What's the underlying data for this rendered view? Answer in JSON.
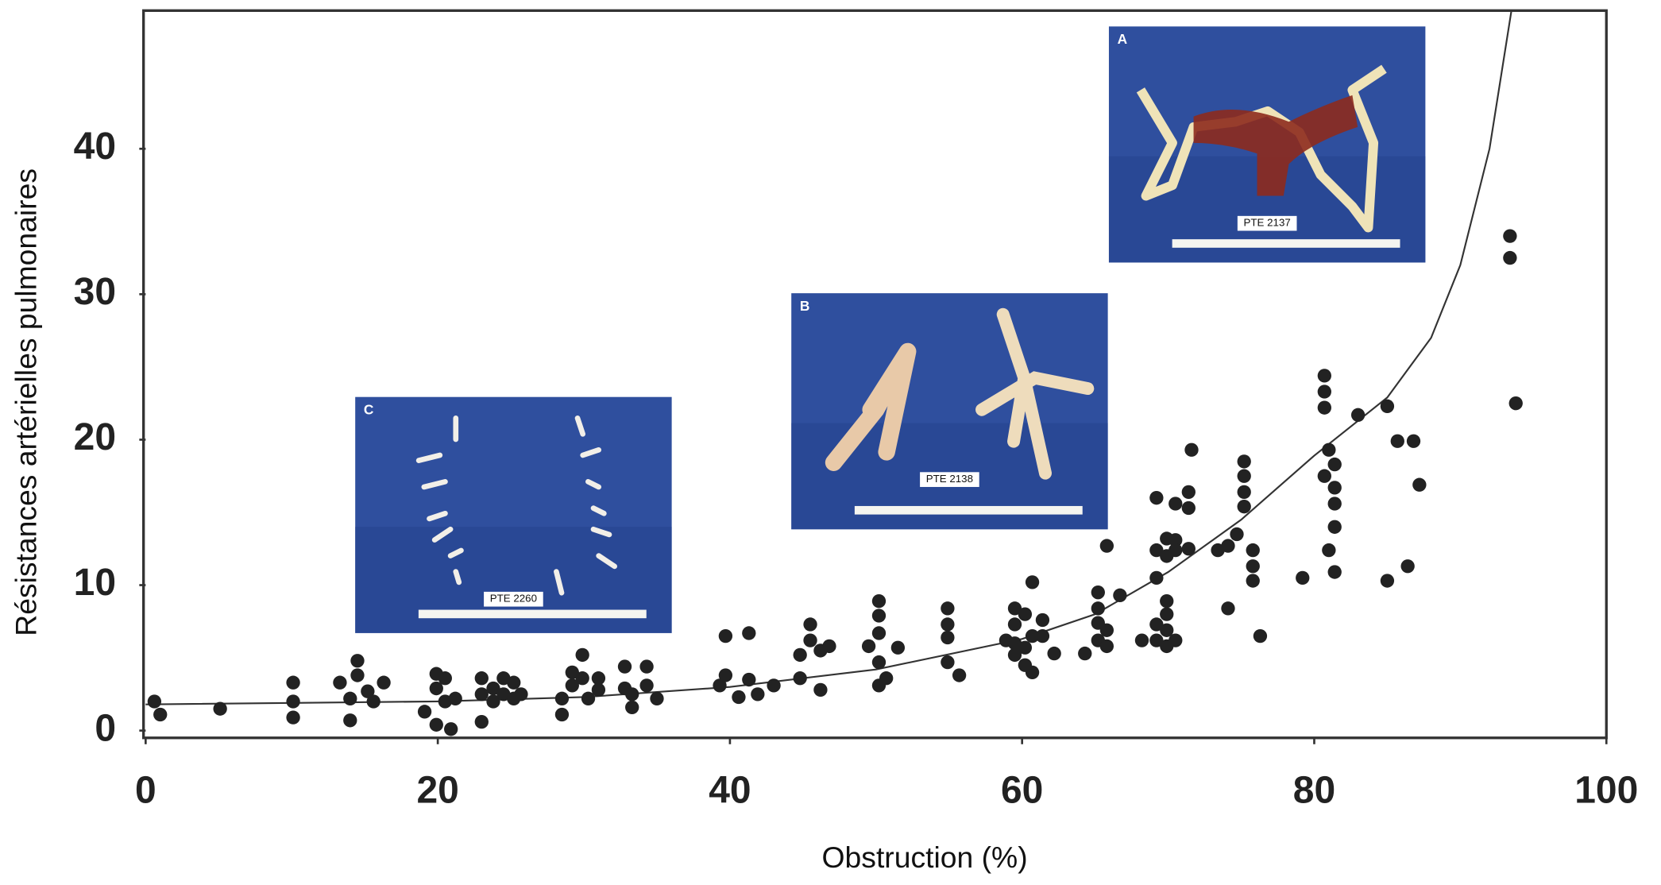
{
  "chart_data": {
    "type": "scatter",
    "x_label": "Obstruction (%)",
    "y_label": "Résistances artérielles pulmonaires",
    "xlim": [
      0,
      100
    ],
    "ylim": [
      -0.5,
      49.5
    ],
    "xticks": [
      0,
      20,
      40,
      60,
      80,
      100
    ],
    "yticks": [
      0,
      10,
      20,
      30,
      40
    ],
    "color": "#222222",
    "x": [
      0.6,
      1,
      5.1,
      10.1,
      10.1,
      10.1,
      13.3,
      14,
      14,
      14.5,
      14.5,
      15.2,
      15.6,
      16.3,
      19.1,
      19.9,
      19.9,
      19.9,
      20.5,
      20.5,
      20.9,
      21.2,
      23,
      23,
      23,
      23.8,
      23.8,
      24.5,
      24.5,
      25.2,
      25.2,
      25.7,
      28.5,
      28.5,
      29.2,
      29.2,
      29.9,
      29.9,
      30.3,
      31,
      31,
      32.8,
      32.8,
      33.3,
      33.3,
      34.3,
      34.3,
      35,
      39.3,
      39.7,
      39.7,
      40.6,
      41.3,
      41.3,
      41.9,
      43,
      44.8,
      44.8,
      45.5,
      45.5,
      46.2,
      46.2,
      46.8,
      49.5,
      50.2,
      50.2,
      50.2,
      50.2,
      50.2,
      50.7,
      51.5,
      54.9,
      54.9,
      54.9,
      54.9,
      55.7,
      58.9,
      59.5,
      59.5,
      59.5,
      59.5,
      60.2,
      60.2,
      60.2,
      60.7,
      60.7,
      60.7,
      61.4,
      61.4,
      62.2,
      64.3,
      65.2,
      65.2,
      65.2,
      65.2,
      65.8,
      65.8,
      65.8,
      66.7,
      68.2,
      69.2,
      69.2,
      69.2,
      69.2,
      69.2,
      69.9,
      69.9,
      69.9,
      69.9,
      69.9,
      69.9,
      70.5,
      70.5,
      70.5,
      70.5,
      71.4,
      71.4,
      71.4,
      71.6,
      73.4,
      74.1,
      74.1,
      74.7,
      75.2,
      75.2,
      75.2,
      75.2,
      75.8,
      75.8,
      75.8,
      76.3,
      79.2,
      80.7,
      80.7,
      80.7,
      80.7,
      81,
      81,
      81.4,
      81.4,
      81.4,
      81.4,
      81.4,
      83,
      85,
      85,
      85.7,
      86.4,
      86.8,
      87.2,
      93.4,
      93.4,
      93.8
    ],
    "values": [
      2.0,
      1.1,
      1.5,
      3.3,
      2.0,
      0.9,
      3.3,
      2.2,
      0.7,
      4.8,
      3.8,
      2.7,
      2.0,
      3.3,
      1.3,
      3.9,
      2.9,
      0.4,
      3.6,
      2.0,
      0.1,
      2.2,
      3.6,
      2.5,
      0.6,
      2.9,
      2.0,
      3.6,
      2.5,
      3.3,
      2.2,
      2.5,
      2.2,
      1.1,
      4.0,
      3.1,
      5.2,
      3.6,
      2.2,
      3.6,
      2.8,
      4.4,
      2.9,
      2.5,
      1.6,
      4.4,
      3.1,
      2.2,
      3.1,
      6.5,
      3.8,
      2.3,
      6.7,
      3.5,
      2.5,
      3.1,
      5.2,
      3.6,
      7.3,
      6.2,
      5.5,
      2.8,
      5.8,
      5.8,
      8.9,
      7.9,
      6.7,
      4.7,
      3.1,
      3.6,
      5.7,
      8.4,
      7.3,
      6.4,
      4.7,
      3.8,
      6.2,
      8.4,
      7.3,
      6.0,
      5.2,
      8.0,
      5.7,
      4.5,
      10.2,
      6.5,
      4.0,
      7.6,
      6.5,
      5.3,
      5.3,
      9.5,
      8.4,
      7.4,
      6.2,
      12.7,
      6.9,
      5.8,
      9.3,
      6.2,
      16.0,
      12.4,
      10.5,
      7.3,
      6.2,
      13.2,
      12,
      8.9,
      8,
      6.9,
      5.8,
      15.6,
      13.1,
      12.4,
      6.2,
      16.4,
      15.3,
      12.5,
      19.3,
      12.4,
      12.7,
      8.4,
      13.5,
      18.5,
      17.5,
      16.4,
      15.4,
      12.4,
      11.3,
      10.3,
      6.5,
      10.5,
      24.4,
      23.3,
      22.2,
      17.5,
      19.3,
      12.4,
      18.3,
      16.7,
      15.6,
      14,
      10.9,
      21.7,
      22.3,
      10.3,
      19.9,
      11.3,
      19.9,
      16.9,
      34.0,
      32.5,
      22.5
    ],
    "curve": {
      "x": [
        0,
        20,
        30,
        40,
        50,
        60,
        65,
        70,
        75,
        80,
        85,
        88,
        90,
        92,
        93.5
      ],
      "values": [
        1.8,
        2.0,
        2.3,
        3.0,
        4.2,
        6.3,
        8.0,
        10.9,
        14.5,
        18.9,
        22.9,
        27,
        32,
        40,
        49.5
      ]
    },
    "insets": [
      {
        "letter": "A",
        "caption": "PTE 2137"
      },
      {
        "letter": "B",
        "caption": "PTE 2138"
      },
      {
        "letter": "C",
        "caption": "PTE 2260"
      }
    ]
  }
}
